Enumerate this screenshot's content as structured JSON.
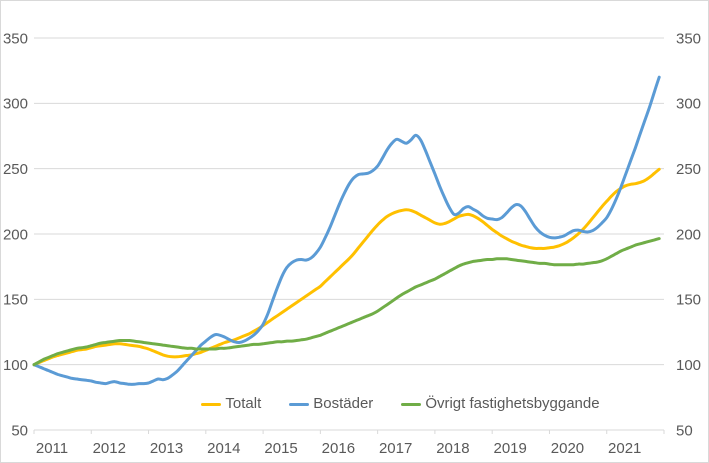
{
  "chart_data": {
    "type": "line",
    "title": "",
    "frequency": "monthly",
    "x_axis": {
      "tick_labels": [
        "2011",
        "2012",
        "2013",
        "2014",
        "2015",
        "2016",
        "2017",
        "2018",
        "2019",
        "2020",
        "2021"
      ],
      "points_per_label": 12
    },
    "y_axis": {
      "min": 50,
      "max": 350,
      "ticks": [
        50,
        100,
        150,
        200,
        250,
        300,
        350
      ],
      "sides": [
        "left",
        "right"
      ]
    },
    "grid": true,
    "legend_position": "bottom",
    "colors": {
      "totalt": "#FFC000",
      "bostader": "#5B9BD5",
      "ovrigt": "#70AD47",
      "gridline": "#D9D9D9",
      "axis_text": "#595959"
    },
    "series": [
      {
        "name": "Totalt",
        "color": "#FFC000",
        "values": [
          100,
          101.5,
          103,
          104.5,
          106,
          107,
          108,
          109,
          110,
          111,
          111.5,
          112,
          113,
          114,
          114.5,
          115,
          115.5,
          116,
          116,
          115.5,
          115,
          114.5,
          114,
          113,
          112,
          110.5,
          109,
          107.5,
          106.5,
          106,
          106,
          106.5,
          107,
          107.5,
          108.5,
          109.5,
          111,
          112.5,
          114,
          115.5,
          117,
          118,
          119,
          120.5,
          122,
          123.5,
          125.5,
          127.5,
          130,
          132.5,
          135,
          137.5,
          140,
          142.5,
          145,
          147.5,
          150,
          152.5,
          155,
          157.5,
          160,
          163.5,
          167,
          170.5,
          174,
          177.5,
          181,
          185,
          189.5,
          194,
          198.5,
          203,
          207,
          210.5,
          213.5,
          215.5,
          217,
          218,
          218.5,
          218,
          216.5,
          214.5,
          212.5,
          210.5,
          208.5,
          207.5,
          208,
          209.5,
          211.5,
          213.5,
          214.5,
          215,
          214,
          212,
          209.5,
          206.5,
          203.5,
          201,
          198.5,
          196.5,
          194.5,
          193,
          191.5,
          190.5,
          189.5,
          189,
          189,
          189,
          189.5,
          190,
          191,
          192.5,
          194.5,
          197,
          200,
          203.5,
          207.5,
          212,
          216.5,
          221,
          225,
          229,
          232.5,
          235,
          237,
          238,
          238.5,
          239.5,
          241,
          243.5,
          246.5,
          249.5
        ]
      },
      {
        "name": "Bostäder",
        "color": "#5B9BD5",
        "values": [
          100,
          98.5,
          97,
          95.5,
          94,
          92.5,
          91.5,
          90.5,
          89.5,
          89,
          88.5,
          88,
          87.5,
          86.5,
          86,
          85.5,
          86.5,
          87,
          86,
          85.5,
          85,
          85,
          85.5,
          85.5,
          86,
          87.5,
          89,
          88.5,
          89.5,
          92,
          95,
          99,
          103,
          107,
          111,
          115,
          118,
          121,
          123,
          122.5,
          121,
          119,
          117.5,
          117,
          118,
          120,
          122.5,
          126,
          131,
          139,
          149,
          159,
          168,
          174.5,
          178,
          180,
          180.5,
          180,
          181.5,
          185,
          190,
          197,
          205,
          214,
          223,
          231,
          238,
          243,
          245.5,
          246,
          246.5,
          248.5,
          252,
          258,
          264.5,
          269.5,
          272.5,
          271,
          269.5,
          272,
          275.5,
          272,
          264,
          255,
          246,
          236.5,
          228,
          220.5,
          215,
          216,
          219.5,
          221,
          219,
          217,
          214,
          212,
          211.5,
          211,
          212.5,
          216,
          220,
          222.5,
          221.5,
          217,
          211,
          205.5,
          201.5,
          199,
          197.5,
          197,
          197.5,
          198.5,
          200.5,
          202.5,
          203,
          202,
          201.5,
          202.5,
          205,
          208.5,
          212.5,
          219,
          227,
          236,
          246,
          256,
          266,
          276.5,
          287,
          297.5,
          309,
          320
        ]
      },
      {
        "name": "Övrigt fastighetsbyggande",
        "color": "#70AD47",
        "values": [
          100,
          102,
          104,
          105.5,
          107,
          108.5,
          109.5,
          110.5,
          111.5,
          112.5,
          113,
          113.5,
          114.5,
          115.5,
          116.5,
          117,
          117.5,
          118,
          118.5,
          118.5,
          118.5,
          118,
          117.5,
          117,
          116.5,
          116,
          115.5,
          115,
          114.5,
          114,
          113.5,
          113,
          112.5,
          112.5,
          112,
          112,
          112,
          112,
          112,
          112.5,
          112.5,
          113,
          113.5,
          114,
          114.5,
          115,
          115.5,
          115.5,
          116,
          116.5,
          117,
          117.5,
          117.5,
          118,
          118,
          118.5,
          119,
          119.5,
          120.5,
          121.5,
          122.5,
          124,
          125.5,
          127,
          128.5,
          130,
          131.5,
          133,
          134.5,
          136,
          137.5,
          139,
          141,
          143.5,
          146,
          148.5,
          151,
          153.5,
          155.5,
          157.5,
          159.5,
          161,
          162.5,
          164,
          165.5,
          167.5,
          169.5,
          171.5,
          173.5,
          175.5,
          177,
          178,
          179,
          179.5,
          180,
          180.5,
          180.5,
          181,
          181,
          181,
          180.5,
          180,
          179.5,
          179,
          178.5,
          178,
          177.5,
          177.5,
          177,
          176.5,
          176.5,
          176.5,
          176.5,
          176.5,
          177,
          177,
          177.5,
          178,
          178.5,
          179.5,
          181,
          183,
          185,
          187,
          188.5,
          190,
          191.5,
          192.5,
          193.5,
          194.5,
          195.5,
          196.5
        ]
      }
    ]
  }
}
